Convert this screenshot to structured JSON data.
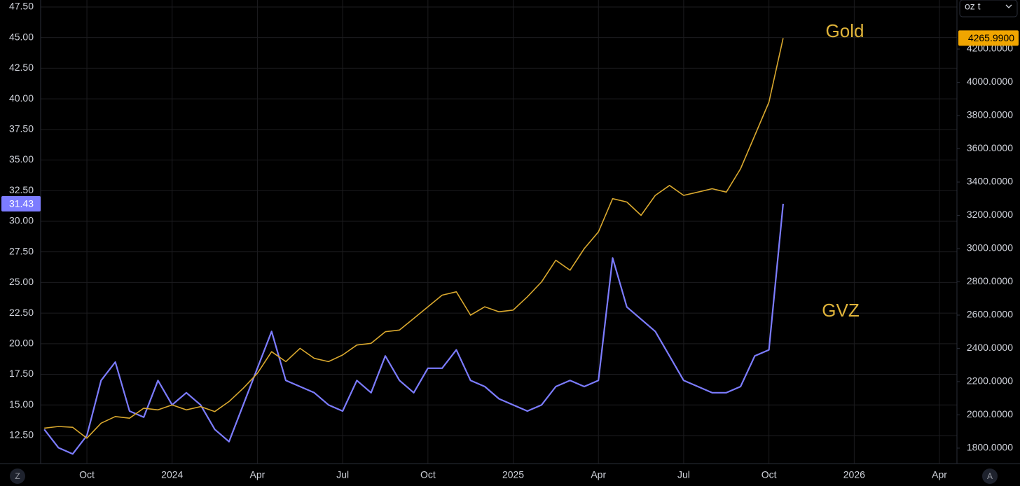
{
  "chart_data": {
    "type": "line",
    "categories": [
      null,
      null,
      null,
      "Oct",
      null,
      null,
      null,
      null,
      null,
      "2024",
      null,
      null,
      null,
      null,
      null,
      "Apr",
      null,
      null,
      null,
      null,
      null,
      "Jul",
      null,
      null,
      null,
      null,
      null,
      "Oct",
      null,
      null,
      null,
      null,
      null,
      "2025",
      null,
      null,
      null,
      null,
      null,
      "Apr",
      null,
      null,
      null,
      null,
      null,
      "Jul",
      null,
      null,
      null,
      null,
      null,
      "Oct",
      null,
      null,
      null,
      null,
      null,
      "2026",
      null,
      null,
      null,
      null,
      null,
      "Apr",
      null
    ],
    "series": [
      {
        "name": "GVZ",
        "color": "#7c7cff",
        "axis": "y",
        "values": [
          13,
          11.5,
          11,
          12.5,
          17,
          18.5,
          14.5,
          14,
          17,
          15,
          16,
          15,
          13,
          12,
          15,
          18,
          21,
          17,
          16.5,
          16,
          15,
          14.5,
          17,
          16,
          19,
          17,
          16,
          18,
          18,
          19.5,
          17,
          16.5,
          15.5,
          15,
          14.5,
          15,
          16.5,
          17,
          16.5,
          17,
          27,
          23,
          22,
          21,
          19,
          17,
          16.5,
          16,
          16,
          16.5,
          19,
          19.5,
          31.43,
          null,
          null,
          null,
          null,
          null,
          null,
          null,
          null,
          null,
          null,
          null,
          null
        ],
        "value_labels": [
          null,
          null,
          null,
          null,
          null,
          null,
          null,
          null,
          null,
          null,
          null,
          null,
          null,
          null,
          null,
          null,
          null,
          null,
          null,
          null,
          null,
          null,
          null,
          null,
          null,
          null,
          null,
          null,
          null,
          null,
          null,
          null,
          null,
          null,
          null,
          null,
          null,
          null,
          null,
          null,
          null,
          null,
          null,
          null,
          null,
          null,
          null,
          null,
          null,
          null,
          null,
          null,
          "31.43",
          null,
          null,
          null,
          null,
          null,
          null,
          null,
          null,
          null,
          null,
          null,
          null
        ]
      },
      {
        "name": "Gold",
        "color": "#d9a82e",
        "axis": "y2",
        "values": [
          1920,
          1930,
          1925,
          1860,
          1950,
          1990,
          1980,
          2040,
          2030,
          2060,
          2030,
          2050,
          2020,
          2080,
          2160,
          2250,
          2380,
          2320,
          2400,
          2340,
          2320,
          2360,
          2420,
          2430,
          2500,
          2510,
          2580,
          2650,
          2720,
          2740,
          2600,
          2650,
          2620,
          2630,
          2710,
          2800,
          2930,
          2870,
          3000,
          3100,
          3300,
          3280,
          3200,
          3320,
          3380,
          3320,
          3340,
          3360,
          3340,
          3480,
          3680,
          3880,
          4265.99,
          null,
          null,
          null,
          null,
          null,
          null,
          null,
          null,
          null,
          null,
          null,
          null
        ],
        "value_labels": [
          null,
          null,
          null,
          null,
          null,
          null,
          null,
          null,
          null,
          null,
          null,
          null,
          null,
          null,
          null,
          null,
          null,
          null,
          null,
          null,
          null,
          null,
          null,
          null,
          null,
          null,
          null,
          null,
          null,
          null,
          null,
          null,
          null,
          null,
          null,
          null,
          null,
          null,
          null,
          null,
          null,
          null,
          null,
          null,
          null,
          null,
          null,
          null,
          null,
          null,
          null,
          null,
          "4265.9900",
          null,
          null,
          null,
          null,
          null,
          null,
          null,
          null,
          null,
          null,
          null,
          null
        ]
      }
    ],
    "ylim": [
      10.21,
      48.07
    ],
    "yticks": [
      {
        "value": 12.5,
        "label": "12.50"
      },
      {
        "value": 15,
        "label": "15.00"
      },
      {
        "value": 17.5,
        "label": "17.50"
      },
      {
        "value": 20,
        "label": "20.00"
      },
      {
        "value": 22.5,
        "label": "22.50"
      },
      {
        "value": 25,
        "label": "25.00"
      },
      {
        "value": 27.5,
        "label": "27.50"
      },
      {
        "value": 30,
        "label": "30.00"
      },
      {
        "value": 32.5,
        "label": "32.50"
      },
      {
        "value": 35,
        "label": "35.00"
      },
      {
        "value": 37.5,
        "label": "37.50"
      },
      {
        "value": 40,
        "label": "40.00"
      },
      {
        "value": 42.5,
        "label": "42.50"
      },
      {
        "value": 45,
        "label": "45.00"
      },
      {
        "value": 47.5,
        "label": "47.50"
      }
    ],
    "y2lim": [
      1707,
      4495
    ],
    "y2ticks": [
      {
        "value": 1800,
        "label": "1800.0000"
      },
      {
        "value": 2000,
        "label": "2000.0000"
      },
      {
        "value": 2200,
        "label": "2200.0000"
      },
      {
        "value": 2400,
        "label": "2400.0000"
      },
      {
        "value": 2600,
        "label": "2600.0000"
      },
      {
        "value": 2800,
        "label": "2800.0000"
      },
      {
        "value": 3000,
        "label": "3000.0000"
      },
      {
        "value": 3200,
        "label": "3200.0000"
      },
      {
        "value": 3400,
        "label": "3400.0000"
      },
      {
        "value": 3600,
        "label": "3600.0000"
      },
      {
        "value": 3800,
        "label": "3800.0000"
      },
      {
        "value": 4000,
        "label": "4000.0000"
      },
      {
        "value": 4200,
        "label": "4200.0000"
      }
    ],
    "y2_unit": "oz t",
    "annotations": [
      {
        "text": "Gold",
        "color": "#e0b43a"
      },
      {
        "text": "GVZ",
        "color": "#e0b43a"
      }
    ],
    "grid": true
  },
  "controls": {
    "left": "Z",
    "right": "A"
  }
}
